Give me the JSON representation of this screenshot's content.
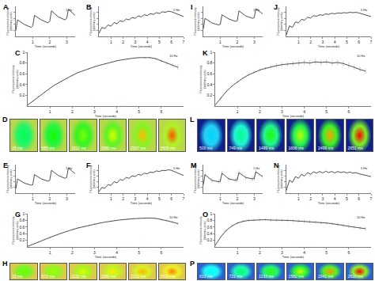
{
  "chart_data": [
    {
      "type": "line",
      "title": "A",
      "annotations": [
        "1 Hz"
      ],
      "x_label": "Time (seconds)",
      "y_label": "Fluorescence intensity\n(arbitrary units)",
      "color": "#222222",
      "x": [
        0,
        0.1,
        0.5,
        0.9,
        1,
        1.1,
        1.5,
        1.9,
        2,
        2.1,
        2.5,
        2.9,
        3,
        3.1,
        3.5
      ],
      "values": [
        0.2,
        0.55,
        0.4,
        0.3,
        0.35,
        0.7,
        0.55,
        0.45,
        0.5,
        0.85,
        0.65,
        0.55,
        0.6,
        0.9,
        0.7
      ],
      "xlim": [
        0,
        3.5
      ],
      "xticks": [
        1,
        2,
        3
      ],
      "ylim": [
        0,
        1
      ],
      "yticks": [
        0.2,
        0.4,
        0.6,
        0.8
      ],
      "tick_labels": "x"
    },
    {
      "type": "line",
      "title": "B",
      "annotations": [
        "5 Hz"
      ],
      "x_label": "Time (seconds)",
      "y_label": "Fluorescence intensity\n(arbitrary units)",
      "color": "#222222",
      "x": [
        0,
        0.25,
        0.5,
        0.75,
        1,
        1.25,
        1.5,
        1.75,
        2,
        2.25,
        2.5,
        2.75,
        3,
        3.25,
        3.5,
        3.75,
        4,
        4.25,
        4.5,
        4.75,
        5,
        5.25,
        5.5,
        5.75,
        6,
        6.25,
        6.5,
        6.75,
        7
      ],
      "values": [
        0.1,
        0.3,
        0.26,
        0.38,
        0.34,
        0.46,
        0.42,
        0.52,
        0.49,
        0.58,
        0.55,
        0.63,
        0.6,
        0.68,
        0.65,
        0.72,
        0.69,
        0.76,
        0.73,
        0.79,
        0.76,
        0.82,
        0.8,
        0.84,
        0.82,
        0.78,
        0.74,
        0.7,
        0.66
      ],
      "xlim": [
        0,
        7
      ],
      "xticks": [
        1,
        2,
        3,
        4,
        5,
        6,
        7
      ],
      "ylim": [
        0,
        1
      ],
      "yticks": [
        0.2,
        0.4,
        0.6,
        0.8
      ],
      "tick_labels": "x"
    },
    {
      "type": "line",
      "title": "C",
      "annotations": [
        "10 Hz"
      ],
      "x_label": "Time (seconds)",
      "y_label": "Fluorescence intensity\n(arbitrary units)",
      "color": "#222222",
      "x": [
        0,
        0.25,
        0.5,
        0.75,
        1,
        1.25,
        1.5,
        1.75,
        2,
        2.25,
        2.5,
        2.75,
        3,
        3.25,
        3.5,
        3.75,
        4,
        4.25,
        4.5,
        4.75,
        5,
        5.25,
        5.5,
        5.75,
        6,
        6.25,
        6.5,
        6.75
      ],
      "values": [
        0.02,
        0.1,
        0.18,
        0.26,
        0.33,
        0.4,
        0.46,
        0.52,
        0.57,
        0.62,
        0.66,
        0.7,
        0.73,
        0.76,
        0.79,
        0.82,
        0.84,
        0.86,
        0.88,
        0.89,
        0.9,
        0.9,
        0.9,
        0.88,
        0.84,
        0.8,
        0.76,
        0.72
      ],
      "error": [
        0.005,
        0.01,
        0.01,
        0.01,
        0.01,
        0.01,
        0.01,
        0.01,
        0.01,
        0.01,
        0.01,
        0.01,
        0.01,
        0.01,
        0.01,
        0.01,
        0.01,
        0.01,
        0.01,
        0.01,
        0.01,
        0.015,
        0.02,
        0.02,
        0.03,
        0.03,
        0.04,
        0.05
      ],
      "xlim": [
        0,
        7
      ],
      "xticks": [
        1,
        2,
        3,
        4,
        5,
        6
      ],
      "ylim": [
        0,
        1
      ],
      "yticks": [
        0.2,
        0.4,
        0.6,
        0.8,
        1
      ]
    },
    {
      "type": "image_strip",
      "title": "D",
      "frames": [
        "15 ms",
        "565 ms",
        "1511 ms",
        "1580 ms",
        "2507 ms",
        "3505 ms"
      ]
    },
    {
      "type": "line",
      "title": "E",
      "annotations": [
        "1 Hz"
      ],
      "x_label": "Time (seconds)",
      "y_label": "Fluorescence intensity\n(arbitrary units)",
      "color": "#222222",
      "x": [
        0,
        0.1,
        0.5,
        0.9,
        1,
        1.1,
        1.5,
        1.9,
        2,
        2.1,
        2.5,
        2.9,
        3,
        3.1,
        3.5
      ],
      "values": [
        0.15,
        0.5,
        0.35,
        0.28,
        0.3,
        0.65,
        0.5,
        0.42,
        0.45,
        0.8,
        0.62,
        0.52,
        0.55,
        0.88,
        0.68
      ],
      "xlim": [
        0,
        3.5
      ],
      "xticks": [
        1,
        2,
        3
      ],
      "ylim": [
        0,
        1
      ],
      "yticks": [
        0.2,
        0.4,
        0.6,
        0.8
      ],
      "tick_labels": "x"
    },
    {
      "type": "line",
      "title": "F",
      "annotations": [
        "5 Hz"
      ],
      "x_label": "Time (seconds)",
      "y_label": "Fluorescence intensity\n(arbitrary units)",
      "color": "#222222",
      "x": [
        0,
        0.25,
        0.5,
        0.75,
        1,
        1.25,
        1.5,
        1.75,
        2,
        2.25,
        2.5,
        2.75,
        3,
        3.25,
        3.5,
        3.75,
        4,
        4.25,
        4.5,
        4.75,
        5,
        5.25,
        5.5,
        5.75,
        6,
        6.25,
        6.5,
        6.75,
        7
      ],
      "values": [
        0.05,
        0.2,
        0.17,
        0.3,
        0.27,
        0.4,
        0.36,
        0.48,
        0.45,
        0.55,
        0.52,
        0.61,
        0.58,
        0.66,
        0.63,
        0.7,
        0.68,
        0.74,
        0.72,
        0.78,
        0.76,
        0.8,
        0.79,
        0.82,
        0.8,
        0.76,
        0.72,
        0.67,
        0.62
      ],
      "xlim": [
        0,
        7
      ],
      "xticks": [
        1,
        2,
        3,
        4,
        5,
        6,
        7
      ],
      "ylim": [
        0,
        1
      ],
      "yticks": [
        0.2,
        0.4,
        0.6,
        0.8
      ],
      "tick_labels": "x"
    },
    {
      "type": "line",
      "title": "G",
      "annotations": [
        "10 Hz"
      ],
      "x_label": "Time (seconds)",
      "y_label": "Fluorescence intensity\n(arbitrary units)",
      "color": "#222222",
      "x": [
        0,
        0.25,
        0.5,
        0.75,
        1,
        1.25,
        1.5,
        1.75,
        2,
        2.25,
        2.5,
        2.75,
        3,
        3.25,
        3.5,
        3.75,
        4,
        4.25,
        4.5,
        4.75,
        5,
        5.25,
        5.5,
        5.75,
        6,
        6.25,
        6.5,
        6.75
      ],
      "values": [
        0.02,
        0.08,
        0.15,
        0.22,
        0.29,
        0.35,
        0.41,
        0.47,
        0.52,
        0.57,
        0.61,
        0.65,
        0.69,
        0.72,
        0.75,
        0.78,
        0.8,
        0.82,
        0.84,
        0.85,
        0.86,
        0.87,
        0.87,
        0.86,
        0.83,
        0.79,
        0.75,
        0.7
      ],
      "error": [
        0.005,
        0.01,
        0.015,
        0.02,
        0.02,
        0.02,
        0.02,
        0.02,
        0.02,
        0.02,
        0.02,
        0.02,
        0.02,
        0.02,
        0.02,
        0.02,
        0.02,
        0.02,
        0.02,
        0.02,
        0.02,
        0.02,
        0.02,
        0.02,
        0.03,
        0.03,
        0.03,
        0.04
      ],
      "xlim": [
        0,
        7
      ],
      "xticks": [
        1,
        2,
        3,
        4,
        5,
        6
      ],
      "ylim": [
        0,
        1
      ],
      "yticks": [
        0.2,
        0.4,
        0.6,
        0.8,
        1
      ]
    },
    {
      "type": "image_strip",
      "title": "H",
      "frames": [
        "15 ms",
        "572 ms",
        "1132 ms",
        "1580 ms",
        "2212 ms",
        "3510 ms"
      ]
    },
    {
      "type": "line",
      "title": "I",
      "annotations": [
        "1 Hz"
      ],
      "x_label": "Time (seconds)",
      "y_label": "Fluorescence intensity\n(arbitrary units)",
      "color": "#222222",
      "x": [
        0,
        0.1,
        0.5,
        0.9,
        1,
        1.1,
        1.5,
        1.9,
        2,
        2.1,
        2.5,
        2.9,
        3,
        3.1,
        3.5
      ],
      "values": [
        0.25,
        0.6,
        0.45,
        0.38,
        0.4,
        0.72,
        0.58,
        0.5,
        0.52,
        0.85,
        0.68,
        0.6,
        0.62,
        0.92,
        0.75
      ],
      "xlim": [
        0,
        3.5
      ],
      "xticks": [
        1,
        2,
        3
      ],
      "ylim": [
        0,
        1
      ],
      "yticks": [
        0.2,
        0.4,
        0.6,
        0.8
      ],
      "tick_labels": "x"
    },
    {
      "type": "line",
      "title": "J",
      "annotations": [
        "5 Hz"
      ],
      "x_label": "Time (seconds)",
      "y_label": "Fluorescence intensity\n(arbitrary units)",
      "color": "#222222",
      "x": [
        0,
        0.25,
        0.5,
        0.75,
        1,
        1.25,
        1.5,
        1.75,
        2,
        2.25,
        2.5,
        2.75,
        3,
        3.25,
        3.5,
        3.75,
        4,
        4.25,
        4.5,
        4.75,
        5,
        5.25,
        5.5,
        5.75,
        6,
        6.25,
        6.5,
        6.75,
        7
      ],
      "values": [
        0.05,
        0.35,
        0.3,
        0.48,
        0.45,
        0.57,
        0.54,
        0.64,
        0.61,
        0.69,
        0.67,
        0.72,
        0.7,
        0.75,
        0.73,
        0.77,
        0.75,
        0.78,
        0.77,
        0.79,
        0.78,
        0.8,
        0.79,
        0.8,
        0.78,
        0.75,
        0.72,
        0.69,
        0.66
      ],
      "xlim": [
        0,
        7
      ],
      "xticks": [
        1,
        2,
        3,
        4,
        5,
        6,
        7
      ],
      "ylim": [
        0,
        1
      ],
      "yticks": [
        0.2,
        0.4,
        0.6,
        0.8
      ],
      "tick_labels": "x"
    },
    {
      "type": "line",
      "title": "K",
      "annotations": [
        "10 Hz"
      ],
      "x_label": "Time (seconds)",
      "y_label": "Fluorescence intensity\n(arbitrary units)",
      "color": "#222222",
      "x": [
        0,
        0.25,
        0.5,
        0.75,
        1,
        1.25,
        1.5,
        1.75,
        2,
        2.25,
        2.5,
        2.75,
        3,
        3.25,
        3.5,
        3.75,
        4,
        4.25,
        4.5,
        4.75,
        5,
        5.25,
        5.5,
        5.75,
        6,
        6.25,
        6.5,
        6.75
      ],
      "values": [
        0.02,
        0.15,
        0.27,
        0.37,
        0.45,
        0.52,
        0.58,
        0.63,
        0.67,
        0.7,
        0.73,
        0.75,
        0.77,
        0.78,
        0.79,
        0.8,
        0.81,
        0.8,
        0.82,
        0.81,
        0.82,
        0.8,
        0.81,
        0.79,
        0.76,
        0.72,
        0.68,
        0.65
      ],
      "error": [
        0.01,
        0.02,
        0.02,
        0.02,
        0.02,
        0.02,
        0.03,
        0.03,
        0.03,
        0.03,
        0.03,
        0.04,
        0.04,
        0.04,
        0.04,
        0.05,
        0.05,
        0.05,
        0.05,
        0.05,
        0.05,
        0.05,
        0.05,
        0.05,
        0.05,
        0.05,
        0.05,
        0.05
      ],
      "xlim": [
        0,
        7
      ],
      "xticks": [
        1,
        2,
        3,
        4,
        5,
        6
      ],
      "ylim": [
        0,
        1
      ],
      "yticks": [
        0.2,
        0.4,
        0.6,
        0.8,
        1
      ]
    },
    {
      "type": "image_strip",
      "title": "L",
      "frames": [
        "500 ms",
        "749 ms",
        "1499 ms",
        "1606 ms",
        "2499 ms",
        "2651 ms"
      ]
    },
    {
      "type": "line",
      "title": "M",
      "annotations": [
        "1 Hz"
      ],
      "x_label": "Time (seconds)",
      "y_label": "Fluorescence intensity\n(arbitrary units)",
      "color": "#222222",
      "x": [
        0,
        0.1,
        0.5,
        0.9,
        1,
        1.1,
        1.5,
        1.9,
        2,
        2.1,
        2.5,
        2.9,
        3,
        3.1,
        3.5
      ],
      "values": [
        0.3,
        0.65,
        0.45,
        0.4,
        0.42,
        0.7,
        0.5,
        0.45,
        0.47,
        0.72,
        0.55,
        0.5,
        0.52,
        0.75,
        0.58
      ],
      "error": [
        0.05,
        0.08,
        0.08,
        0.08,
        0.08,
        0.08,
        0.08,
        0.08,
        0.08,
        0.08,
        0.08,
        0.08,
        0.08,
        0.08,
        0.08
      ],
      "xlim": [
        0,
        3.5
      ],
      "xticks": [
        1,
        2,
        3
      ],
      "ylim": [
        0,
        1
      ],
      "yticks": [
        0.2,
        0.4,
        0.6,
        0.8
      ],
      "tick_labels": "x"
    },
    {
      "type": "line",
      "title": "N",
      "annotations": [
        "5 Hz"
      ],
      "x_label": "Time (seconds)",
      "y_label": "Fluorescence intensity\n(arbitrary units)",
      "color": "#222222",
      "x": [
        0,
        0.25,
        0.5,
        0.75,
        1,
        1.25,
        1.5,
        1.75,
        2,
        2.25,
        2.5,
        2.75,
        3,
        3.25,
        3.5,
        3.75,
        4,
        4.25,
        4.5,
        4.75,
        5,
        5.25,
        5.5,
        5.75,
        6,
        6.25,
        6.5,
        6.75,
        7
      ],
      "values": [
        0.1,
        0.45,
        0.38,
        0.58,
        0.52,
        0.66,
        0.6,
        0.72,
        0.66,
        0.75,
        0.7,
        0.76,
        0.71,
        0.77,
        0.72,
        0.76,
        0.71,
        0.76,
        0.72,
        0.75,
        0.71,
        0.74,
        0.7,
        0.72,
        0.68,
        0.65,
        0.62,
        0.6,
        0.58
      ],
      "xlim": [
        0,
        7
      ],
      "xticks": [
        1,
        2,
        3,
        4,
        5,
        6,
        7
      ],
      "ylim": [
        0,
        1
      ],
      "yticks": [
        0.2,
        0.4,
        0.6,
        0.8
      ],
      "tick_labels": "x"
    },
    {
      "type": "line",
      "title": "O",
      "annotations": [
        "10 Hz"
      ],
      "x_label": "Time (seconds)",
      "y_label": "Fluorescence intensity\n(arbitrary units)",
      "color": "#222222",
      "x": [
        0,
        0.25,
        0.5,
        0.75,
        1,
        1.25,
        1.5,
        1.75,
        2,
        2.25,
        2.5,
        2.75,
        3,
        3.25,
        3.5,
        3.75,
        4,
        4.25,
        4.5,
        4.75,
        5,
        5.25,
        5.5,
        5.75,
        6,
        6.25,
        6.5,
        6.75
      ],
      "values": [
        0.05,
        0.3,
        0.5,
        0.63,
        0.72,
        0.77,
        0.8,
        0.81,
        0.82,
        0.82,
        0.81,
        0.81,
        0.8,
        0.8,
        0.79,
        0.78,
        0.77,
        0.76,
        0.75,
        0.73,
        0.72,
        0.7,
        0.68,
        0.65,
        0.62,
        0.6,
        0.57,
        0.55
      ],
      "error": [
        0.01,
        0.02,
        0.03,
        0.04,
        0.04,
        0.04,
        0.04,
        0.04,
        0.04,
        0.04,
        0.05,
        0.05,
        0.05,
        0.05,
        0.05,
        0.05,
        0.05,
        0.05,
        0.05,
        0.05,
        0.05,
        0.05,
        0.05,
        0.05,
        0.05,
        0.05,
        0.05,
        0.05
      ],
      "xlim": [
        0,
        7
      ],
      "xticks": [
        1,
        2,
        3,
        4,
        5,
        6
      ],
      "ylim": [
        0,
        1
      ],
      "yticks": [
        0.2,
        0.4,
        0.6,
        0.8,
        1
      ]
    },
    {
      "type": "image_strip",
      "title": "P",
      "frames": [
        "613 ms",
        "721 ms",
        "1133 ms",
        "1582 ms",
        "2041 ms",
        "2610 ms"
      ]
    }
  ]
}
